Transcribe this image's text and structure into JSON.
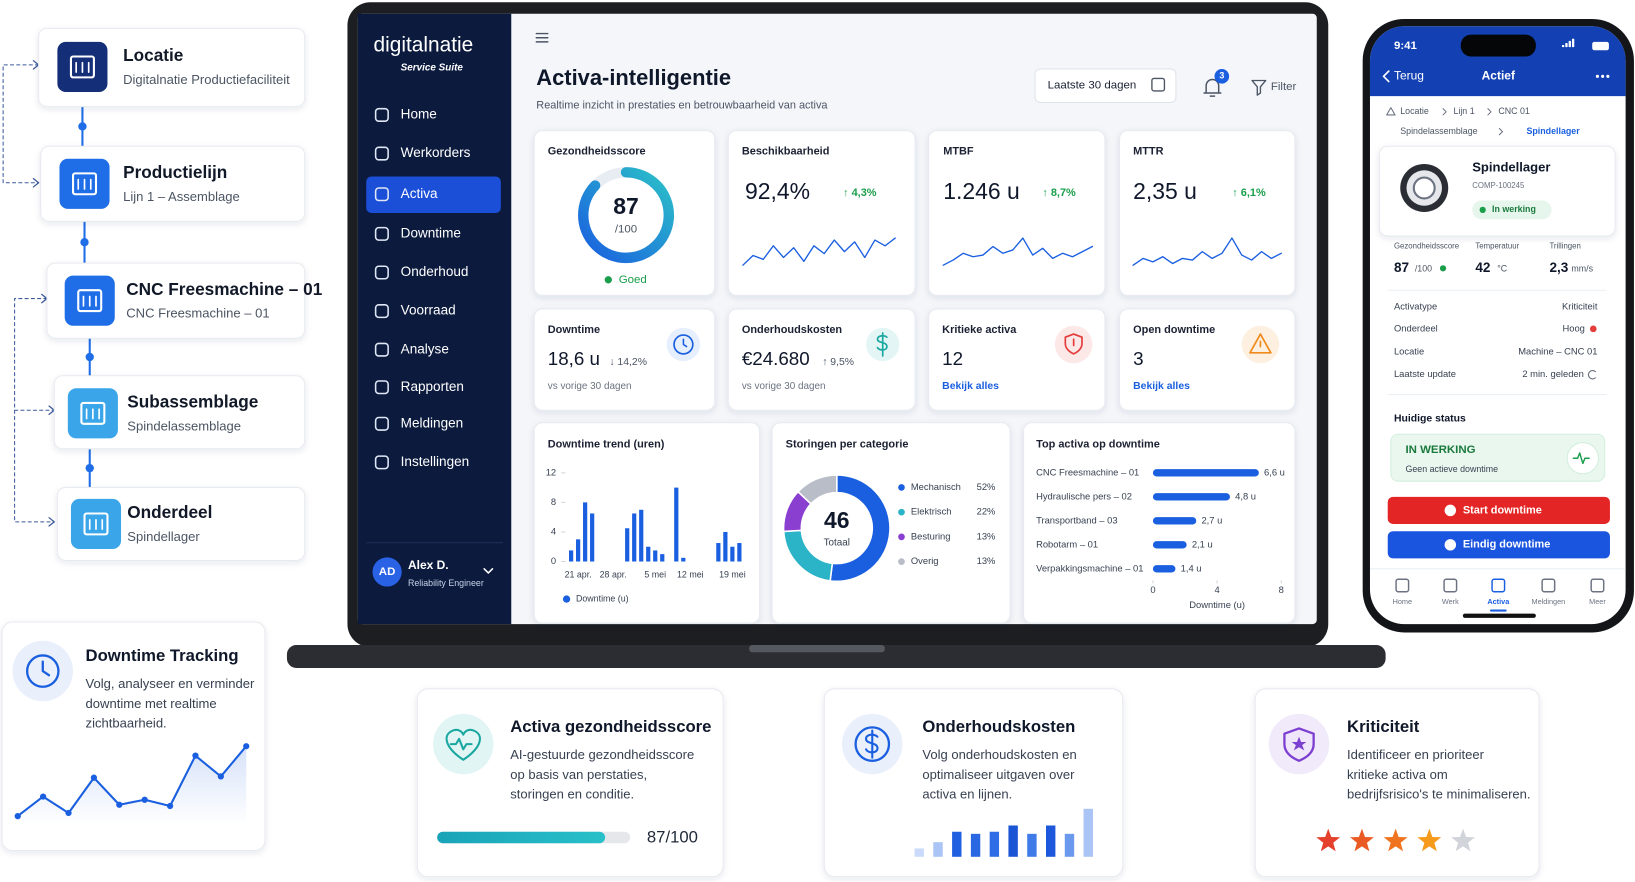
{
  "hierarchy": [
    {
      "title": "Locatie",
      "subtitle": "Digitalnatie Productiefaciliteit"
    },
    {
      "title": "Productielijn",
      "subtitle": "Lijn 1 – Assemblage"
    },
    {
      "title": "CNC Freesmachine – 01",
      "subtitle": "CNC Freesmachine – 01"
    },
    {
      "title": "Subassemblage",
      "subtitle": "Spindelassemblage"
    },
    {
      "title": "Onderdeel",
      "subtitle": "Spindellager"
    }
  ],
  "sidebar": {
    "brand": "digitalnatie",
    "tagline": "Service Suite",
    "nav": [
      "Home",
      "Werkorders",
      "Activa",
      "Downtime",
      "Onderhoud",
      "Voorraad",
      "Analyse",
      "Rapporten",
      "Meldingen",
      "Instellingen"
    ],
    "active": 2,
    "user": {
      "initials": "AD",
      "name": "Alex D.",
      "role": "Reliability Engineer"
    }
  },
  "header": {
    "title": "Activa-intelligentie",
    "subtitle": "Realtime inzicht in prestaties en betrouwbaarheid van activa",
    "date_range": "Laatste 30 dagen",
    "notifications": 3,
    "filter": "Filter"
  },
  "kpis": [
    {
      "label": "Gezondheidsscore",
      "value": 87,
      "max": 100,
      "max_label": "/100",
      "status": "Goed"
    },
    {
      "label": "Beschikbaarheid",
      "value": "92,4%",
      "change": "↑ 4,3%",
      "trend": [
        2,
        7,
        5,
        12,
        6,
        11,
        4,
        12,
        8,
        15,
        9,
        14,
        6,
        15,
        12,
        16
      ]
    },
    {
      "label": "MTBF",
      "value": "1.246 u",
      "change": "↑ 8,7%",
      "trend": [
        2,
        5,
        9,
        7,
        8,
        13,
        9,
        11,
        18,
        8,
        12,
        6,
        9,
        7,
        10,
        13
      ]
    },
    {
      "label": "MTTR",
      "value": "2,35 u",
      "change": "↑ 6,1%",
      "trend": [
        3,
        7,
        5,
        8,
        4,
        7,
        6,
        11,
        7,
        10,
        19,
        9,
        6,
        11,
        7,
        10
      ]
    }
  ],
  "kpis2": [
    {
      "label": "Downtime",
      "value": "18,6 u",
      "change": "↓ 14,2%",
      "note": "vs vorige 30 dagen"
    },
    {
      "label": "Onderhoudskosten",
      "value": "€24.680",
      "change": "↑ 9,5%",
      "note": "vs vorige 30 dagen"
    },
    {
      "label": "Kritieke activa",
      "value": 12,
      "link": "Bekijk alles"
    },
    {
      "label": "Open downtime",
      "value": 3,
      "link": "Bekijk alles"
    }
  ],
  "chart_data": [
    {
      "type": "bar",
      "title": "Downtime trend (uren)",
      "categories": [
        null,
        "21 apr.",
        null,
        null,
        null,
        null,
        "28 apr.",
        null,
        null,
        null,
        null,
        null,
        "5 mei",
        null,
        null,
        null,
        null,
        "12 mei",
        null,
        null,
        null,
        null,
        null,
        "19 mei",
        null
      ],
      "series": [
        {
          "name": "Downtime (u)",
          "color": "#1a5fe0",
          "values": [
            1.5,
            3,
            8,
            6.5,
            0,
            0,
            0,
            0,
            4.5,
            6.5,
            7,
            2,
            1.5,
            1,
            0,
            10,
            0.5,
            0,
            0,
            0,
            0,
            2.5,
            4,
            2,
            2.5
          ]
        }
      ],
      "ylim": [
        0,
        12
      ],
      "yticks": [
        0,
        4,
        8,
        12
      ]
    },
    {
      "type": "pie",
      "title": "Storingen per categorie",
      "total": 46,
      "total_label": "Totaal",
      "categories": [
        "Mechanisch",
        "Elektrisch",
        "Besturing",
        "Overig"
      ],
      "values": [
        52,
        22,
        13,
        13
      ],
      "value_labels": [
        "52%",
        "22%",
        "13%",
        "13%"
      ],
      "colors": [
        "#1a5fe0",
        "#2bb3c8",
        "#8a3fd1",
        "#b9bdc7"
      ]
    },
    {
      "type": "hbar",
      "title": "Top activa op downtime",
      "categories": [
        "CNC Freesmachine – 01",
        "Hydraulische pers – 02",
        "Transportband – 03",
        "Robotarm – 01",
        "Verpakkingsmachine – 01"
      ],
      "values": [
        6.6,
        4.8,
        2.7,
        2.1,
        1.4
      ],
      "value_labels": [
        "6,6 u",
        "4,8 u",
        "2,7 u",
        "2,1 u",
        "1,4 u"
      ],
      "color": "#1a5fe0",
      "xlim": [
        0,
        8
      ],
      "xticks": [
        0,
        4,
        8
      ],
      "xlabel": "Downtime (u)"
    }
  ],
  "phone": {
    "time": "9:41",
    "back": "Terug",
    "title": "Actief",
    "breadcrumb": [
      "Locatie",
      "Lijn 1",
      "CNC 01"
    ],
    "breadcrumb2": [
      "Spindelassemblage",
      "Spindellager"
    ],
    "component": {
      "name": "Spindellager",
      "code": "COMP-100245",
      "status": "In werking"
    },
    "metrics": [
      {
        "label": "Gezondheidsscore",
        "value": 87,
        "unit": "/100"
      },
      {
        "label": "Temperatuur",
        "value": 42,
        "unit": "°C"
      },
      {
        "label": "Trillingen",
        "value": "2,3",
        "unit": "mm/s"
      }
    ],
    "details": [
      {
        "label": "Activatype",
        "value": "Kriticiteit"
      },
      {
        "label": "Onderdeel",
        "value": "Hoog"
      },
      {
        "label": "Locatie",
        "value": "Machine – CNC 01"
      },
      {
        "label": "Laatste update",
        "value": "2 min. geleden"
      }
    ],
    "status_title": "Huidige status",
    "status": "IN WERKING",
    "status_note": "Geen actieve downtime",
    "buttons": [
      "Start downtime",
      "Eindig downtime"
    ],
    "tabs": [
      "Home",
      "Werk",
      "Activa",
      "Meldingen",
      "Meer"
    ],
    "active_tab": 2
  },
  "features": [
    {
      "title": "Downtime Tracking",
      "lines": [
        "Volg, analyseer en verminder",
        "downtime met realtime",
        "zichtbaarheid."
      ],
      "trend": [
        2.2,
        5.3,
        2.7,
        8.3,
        4,
        4.8,
        3.8,
        11.8,
        8.5,
        13.3
      ]
    },
    {
      "title": "Activa gezondheidsscore",
      "lines": [
        "AI-gestuurde gezondheidsscore",
        "op basis van perstaties,",
        "storingen en conditie."
      ],
      "progress": 87,
      "max": 100,
      "progress_label": "87/100"
    },
    {
      "title": "Onderhoudskosten",
      "lines": [
        "Volg onderhoudskosten en",
        "optimaliseer uitgaven over",
        "activa en lijnen."
      ],
      "bars": [
        8,
        14,
        24,
        22,
        24,
        30,
        22,
        30,
        22,
        46
      ]
    },
    {
      "title": "Kriticiteit",
      "lines": [
        "Identificeer en prioriteer",
        "kritieke activa om",
        "bedrijfsrisico's te minimaliseren."
      ],
      "rating": 4,
      "max": 5
    }
  ]
}
